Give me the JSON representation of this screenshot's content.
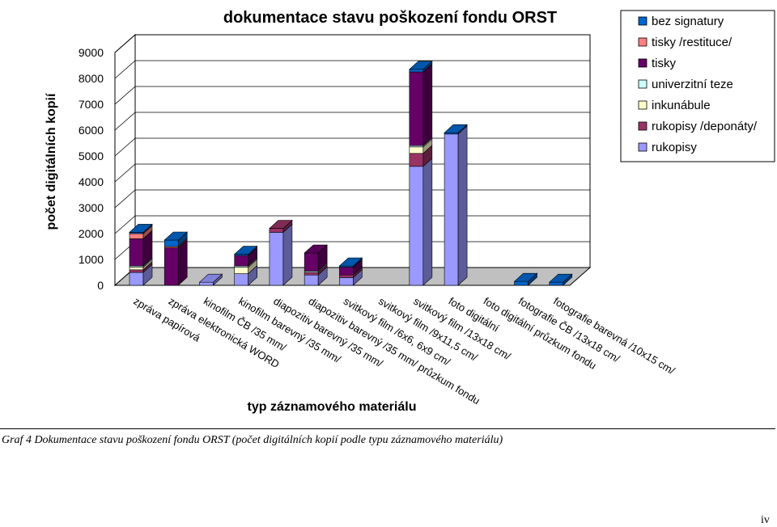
{
  "caption": "Graf 4 Dokumentace stavu poškození fondu ORST (počet digitálních kopií podle typu záznamového materiálu)",
  "page_number": "iv",
  "chart_data": {
    "type": "bar",
    "stacked": true,
    "three_d": true,
    "title": "dokumentace stavu poškození fondu ORST",
    "xlabel": "typ záznamového materiálu",
    "ylabel": "počet digitálních kopií",
    "ylim": [
      0,
      9000
    ],
    "yticks": [
      "0",
      "1000",
      "2000",
      "3000",
      "4000",
      "5000",
      "6000",
      "7000",
      "8000",
      "9000"
    ],
    "grid": true,
    "legend_position": "top-right",
    "categories": [
      "zpráva papírová",
      "zpráva elektronická WORD",
      "kinofilm ČB /35 mm/",
      "kinofilm barevný /35 mm/",
      "diapozitiv barevný /35 mm/",
      "diapozitiv barevný /35 mm/ průzkum fondu",
      "svitkový film /6x6, 6x9 cm/",
      "svitkový film /9x11,5 cm/",
      "svitkový film /13x18 cm/",
      "foto digitální",
      "foto digitální průzkum fondu",
      "fotografie ČB /13x18 cm/",
      "fotografie barevná /10x15 cm/"
    ],
    "series": [
      {
        "name": "rukopisy",
        "color": "#9999ff",
        "values": [
          500,
          0,
          100,
          450,
          2050,
          400,
          300,
          0,
          4600,
          5850,
          0,
          0,
          0
        ]
      },
      {
        "name": "rukopisy /deponáty/",
        "color": "#993366",
        "values": [
          100,
          0,
          0,
          0,
          150,
          100,
          100,
          0,
          500,
          0,
          0,
          0,
          0
        ]
      },
      {
        "name": "inkunábule",
        "color": "#ffffcc",
        "values": [
          100,
          0,
          0,
          250,
          0,
          0,
          0,
          0,
          250,
          0,
          0,
          0,
          0
        ]
      },
      {
        "name": "univerzitní teze",
        "color": "#ccffff",
        "values": [
          50,
          0,
          0,
          50,
          0,
          50,
          0,
          0,
          50,
          0,
          0,
          0,
          0
        ]
      },
      {
        "name": "tisky",
        "color": "#660066",
        "values": [
          1050,
          1450,
          0,
          400,
          0,
          700,
          300,
          0,
          2850,
          0,
          0,
          0,
          0
        ]
      },
      {
        "name": "tisky /restituce/",
        "color": "#ff8080",
        "values": [
          200,
          50,
          0,
          0,
          0,
          0,
          0,
          0,
          0,
          0,
          0,
          0,
          0
        ]
      },
      {
        "name": "bez signatury",
        "color": "#0066cc",
        "values": [
          50,
          250,
          0,
          50,
          0,
          0,
          50,
          0,
          100,
          50,
          0,
          150,
          50
        ]
      }
    ],
    "legend_order": [
      "bez signatury",
      "tisky /restituce/",
      "tisky",
      "univerzitní teze",
      "inkunábule",
      "rukopisy /deponáty/",
      "rukopisy"
    ]
  }
}
